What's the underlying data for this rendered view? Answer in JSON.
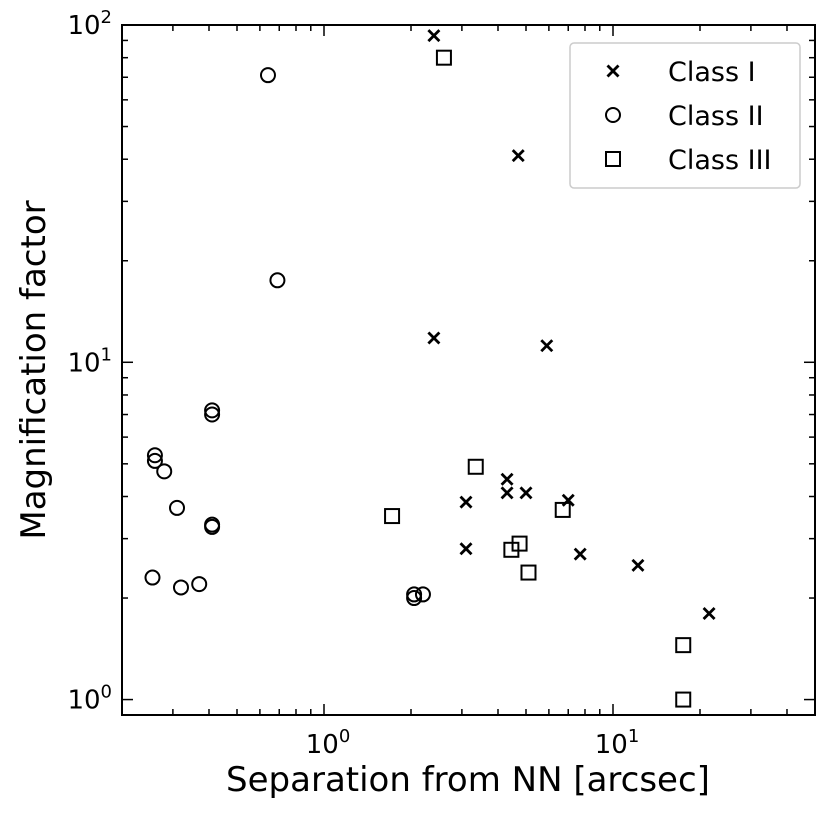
{
  "chart_data": {
    "type": "scatter",
    "title": "",
    "xlabel": "Separation from NN [arcsec]",
    "ylabel": "Magnification factor",
    "xscale": "log",
    "yscale": "log",
    "xlim": [
      0.2,
      50
    ],
    "ylim": [
      0.9,
      100
    ],
    "xticks": [
      {
        "value": 1,
        "base": "10",
        "exp": "0"
      },
      {
        "value": 10,
        "base": "10",
        "exp": "1"
      }
    ],
    "yticks": [
      {
        "value": 1,
        "base": "10",
        "exp": "0"
      },
      {
        "value": 10,
        "base": "10",
        "exp": "1"
      },
      {
        "value": 100,
        "base": "10",
        "exp": "2"
      }
    ],
    "grid": false,
    "legend_position": "top-right",
    "series": [
      {
        "name": "Class I",
        "marker": "x",
        "color": "#000000",
        "points": [
          {
            "x": 2.4,
            "y": 93
          },
          {
            "x": 4.7,
            "y": 41
          },
          {
            "x": 2.4,
            "y": 11.8
          },
          {
            "x": 5.9,
            "y": 11.2
          },
          {
            "x": 4.3,
            "y": 4.5
          },
          {
            "x": 4.3,
            "y": 4.1
          },
          {
            "x": 5.0,
            "y": 4.1
          },
          {
            "x": 3.1,
            "y": 3.85
          },
          {
            "x": 7.0,
            "y": 3.9
          },
          {
            "x": 3.1,
            "y": 2.8
          },
          {
            "x": 7.7,
            "y": 2.7
          },
          {
            "x": 12.2,
            "y": 2.5
          },
          {
            "x": 21.5,
            "y": 1.8
          }
        ]
      },
      {
        "name": "Class II",
        "marker": "circle",
        "color": "#000000",
        "points": [
          {
            "x": 0.64,
            "y": 71
          },
          {
            "x": 0.69,
            "y": 17.5
          },
          {
            "x": 0.41,
            "y": 7.2
          },
          {
            "x": 0.41,
            "y": 7.0
          },
          {
            "x": 0.26,
            "y": 5.3
          },
          {
            "x": 0.26,
            "y": 5.1
          },
          {
            "x": 0.28,
            "y": 4.75
          },
          {
            "x": 0.31,
            "y": 3.7
          },
          {
            "x": 0.41,
            "y": 3.3
          },
          {
            "x": 0.41,
            "y": 3.25
          },
          {
            "x": 0.255,
            "y": 2.3
          },
          {
            "x": 0.32,
            "y": 2.15
          },
          {
            "x": 0.37,
            "y": 2.2
          },
          {
            "x": 2.05,
            "y": 2.05
          },
          {
            "x": 2.05,
            "y": 2.0
          },
          {
            "x": 2.2,
            "y": 2.05
          }
        ]
      },
      {
        "name": "Class III",
        "marker": "square",
        "color": "#000000",
        "points": [
          {
            "x": 2.6,
            "y": 80
          },
          {
            "x": 3.35,
            "y": 4.9
          },
          {
            "x": 1.72,
            "y": 3.5
          },
          {
            "x": 6.7,
            "y": 3.65
          },
          {
            "x": 4.75,
            "y": 2.9
          },
          {
            "x": 4.45,
            "y": 2.78
          },
          {
            "x": 5.1,
            "y": 2.38
          },
          {
            "x": 17.5,
            "y": 1.45
          },
          {
            "x": 17.5,
            "y": 1.0
          }
        ]
      }
    ]
  }
}
